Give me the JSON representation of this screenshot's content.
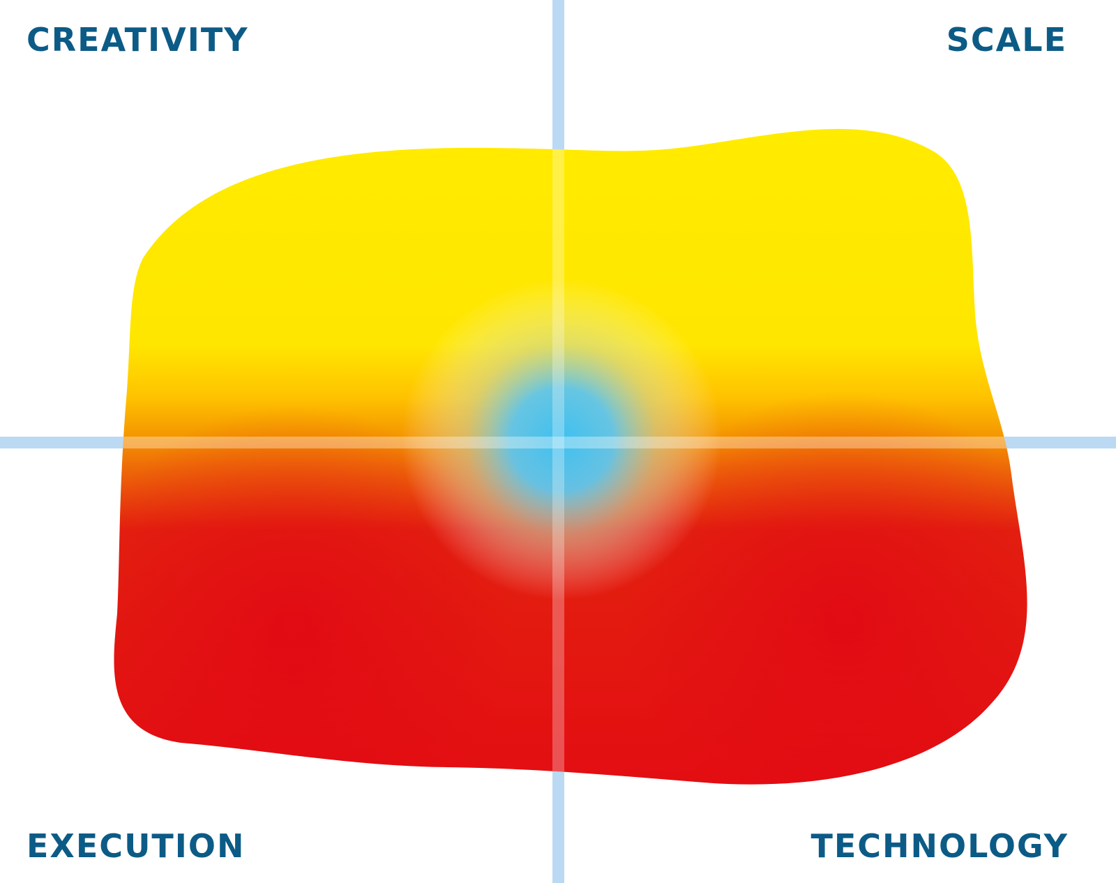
{
  "labels": {
    "top_left": "CREATIVITY",
    "top_right": "SCALE",
    "bottom_left": "EXECUTION",
    "bottom_right": "TECHNOLOGY"
  },
  "colors": {
    "label_text": "#0c5b86",
    "axis_line": "#bcd9f3",
    "blob_yellow": "#ffee00",
    "blob_orange": "#f59a00",
    "blob_red": "#e30613",
    "center_blue": "#3fc0f0"
  }
}
